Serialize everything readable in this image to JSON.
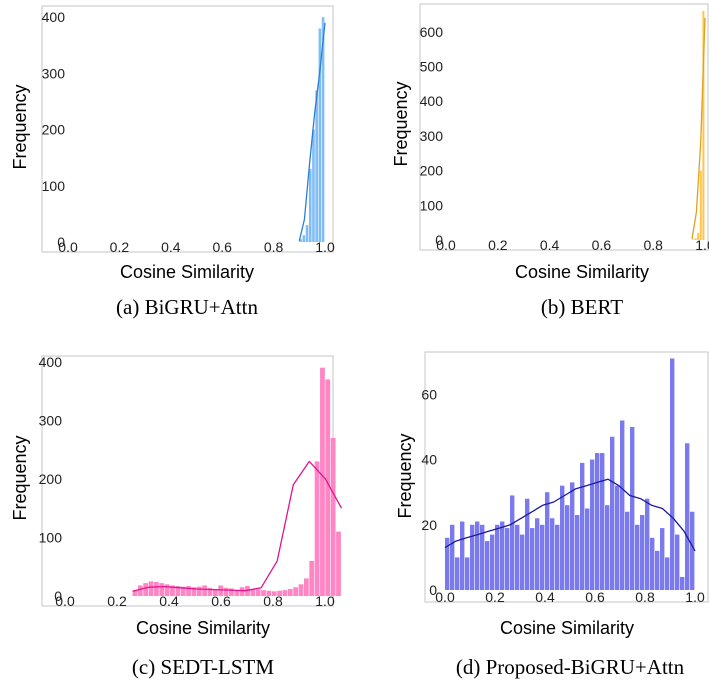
{
  "chart_data": [
    {
      "type": "bar",
      "caption": "(a) BiGRU+Attn",
      "xlabel": "Cosine Similarity",
      "ylabel": "Frequency",
      "xlim": [
        0.0,
        1.0
      ],
      "ylim": [
        0,
        420
      ],
      "xticks": [
        "0.0",
        "0.2",
        "0.4",
        "0.6",
        "0.8",
        "1.0"
      ],
      "yticks": [
        "0",
        "100",
        "200",
        "300",
        "400"
      ],
      "bin_width": 0.0125,
      "bin_start": 0.9,
      "values": [
        5,
        12,
        30,
        130,
        200,
        270,
        380,
        400
      ],
      "kde_y": [
        2,
        40,
        140,
        230,
        305,
        390
      ],
      "color": "#80bdf5",
      "line_color": "#2a7fd4"
    },
    {
      "type": "bar",
      "caption": "(b) BERT",
      "xlabel": "Cosine Similarity",
      "ylabel": "Frequency",
      "xlim": [
        0.0,
        1.0
      ],
      "ylim": [
        0,
        680
      ],
      "xticks": [
        "0.0",
        "0.2",
        "0.4",
        "0.6",
        "0.8",
        "1.0"
      ],
      "yticks": [
        "0",
        "100",
        "200",
        "300",
        "400",
        "500",
        "600"
      ],
      "bin_width": 0.01,
      "bin_start": 0.95,
      "values": [
        2,
        5,
        20,
        200,
        660
      ],
      "kde_y": [
        3,
        80,
        280,
        640
      ],
      "color": "#ffc64a",
      "line_color": "#e0a020"
    },
    {
      "type": "bar",
      "caption": "(c) SEDT-LSTM",
      "xlabel": "Cosine Similarity",
      "ylabel": "Frequency",
      "xlim": [
        0.0,
        1.0
      ],
      "ylim": [
        0,
        410
      ],
      "xticks": [
        "0.0",
        "0.2",
        "0.4",
        "0.6",
        "0.8",
        "1.0"
      ],
      "yticks": [
        "0",
        "100",
        "200",
        "300",
        "400"
      ],
      "bin_width": 0.0206,
      "bin_start": 0.26,
      "values": [
        10,
        18,
        22,
        25,
        24,
        22,
        20,
        18,
        17,
        16,
        17,
        15,
        16,
        18,
        14,
        12,
        18,
        14,
        13,
        10,
        15,
        17,
        12,
        11,
        10,
        9,
        8,
        9,
        10,
        12,
        15,
        20,
        30,
        60,
        230,
        390,
        370,
        270,
        110
      ],
      "kde_y": [
        8,
        15,
        16,
        14,
        12,
        11,
        10,
        9,
        14,
        60,
        190,
        230,
        200,
        150
      ],
      "color": "#ff85c4",
      "line_color": "#e0158c"
    },
    {
      "type": "bar",
      "caption": "(d) Proposed-BiGRU+Attn",
      "xlabel": "Cosine Similarity",
      "ylabel": "Frequency",
      "xlim": [
        -0.02,
        1.02
      ],
      "ylim": [
        0,
        73
      ],
      "xticks": [
        "0.0",
        "0.2",
        "0.4",
        "0.6",
        "0.8",
        "1.0"
      ],
      "yticks": [
        "0",
        "20",
        "40",
        "60"
      ],
      "bin_width": 0.02,
      "bin_start": 0.0,
      "values": [
        16,
        20,
        10,
        21,
        10,
        20,
        21,
        20,
        15,
        17,
        20,
        21,
        19,
        29,
        20,
        17,
        28,
        19,
        22,
        20,
        30,
        22,
        20,
        32,
        26,
        33,
        23,
        39,
        25,
        40,
        42,
        42,
        26,
        47,
        32,
        52,
        24,
        50,
        20,
        23,
        28,
        16,
        12,
        19,
        10,
        71,
        17,
        4,
        45,
        24
      ],
      "kde_y": [
        13,
        15,
        16,
        17,
        18,
        19,
        20,
        22,
        24,
        26,
        27,
        29,
        31,
        32,
        33,
        34,
        32,
        29,
        28,
        26,
        25,
        22,
        18,
        12
      ],
      "color": "#7a7aee",
      "line_color": "#1a1aa0"
    }
  ]
}
